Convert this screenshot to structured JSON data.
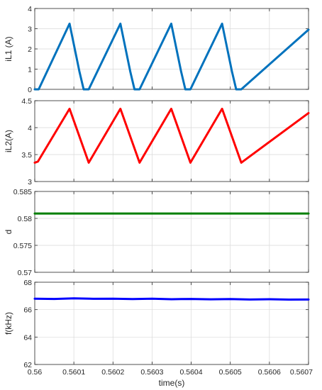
{
  "chart_data": {
    "type": "line",
    "xlabel": "time(s)",
    "xlim": [
      0.56,
      0.5607
    ],
    "xticks": [
      0.56,
      0.5601,
      0.5602,
      0.5603,
      0.5604,
      0.5605,
      0.5606,
      0.5607
    ],
    "x_tick_labels": [
      "0.56",
      "0.5601",
      "0.5602",
      "0.5603",
      "0.5604",
      "0.5605",
      "0.5606",
      "0.5607"
    ],
    "grid": true,
    "panels": [
      {
        "ylabel": "iL1 (A)",
        "ylim": [
          0,
          4
        ],
        "yticks": [
          0,
          1,
          2,
          3,
          4
        ],
        "y_tick_labels": [
          "0",
          "1",
          "2",
          "3",
          "4"
        ],
        "series": [
          {
            "color": "#0072bd",
            "x": [
              0.56,
              0.56001,
              0.560089,
              0.560114,
              0.560125,
              0.560138,
              0.560219,
              0.560244,
              0.560255,
              0.560268,
              0.560349,
              0.560374,
              0.560385,
              0.560398,
              0.560479,
              0.560504,
              0.560515,
              0.560528,
              0.5607
            ],
            "y": [
              0,
              0,
              3.25,
              0.9,
              0,
              0,
              3.25,
              0.9,
              0,
              0,
              3.25,
              0.9,
              0,
              0,
              3.25,
              0.9,
              0,
              0,
              2.95
            ]
          }
        ]
      },
      {
        "ylabel": "iL2(A)",
        "ylim": [
          3,
          4.5
        ],
        "yticks": [
          3,
          3.5,
          4,
          4.5
        ],
        "y_tick_labels": [
          "3",
          "3.5",
          "4",
          "4.5"
        ],
        "series": [
          {
            "color": "#ff0000",
            "x": [
              0.56,
              0.560008,
              0.560089,
              0.560138,
              0.560219,
              0.560268,
              0.560349,
              0.560398,
              0.560479,
              0.560528,
              0.5607
            ],
            "y": [
              3.35,
              3.37,
              4.35,
              3.35,
              4.35,
              3.35,
              4.35,
              3.35,
              4.35,
              3.35,
              4.27
            ]
          }
        ]
      },
      {
        "ylabel": "d",
        "ylim": [
          0.57,
          0.585
        ],
        "yticks": [
          0.57,
          0.575,
          0.58,
          0.585
        ],
        "y_tick_labels": [
          "0.57",
          "0.575",
          "0.58",
          "0.585"
        ],
        "series": [
          {
            "color": "#007f00",
            "x": [
              0.56,
              0.5607
            ],
            "y": [
              0.5809,
              0.5809
            ]
          }
        ]
      },
      {
        "ylabel": "f(kHz)",
        "ylim": [
          62,
          68
        ],
        "yticks": [
          62,
          64,
          66,
          68
        ],
        "y_tick_labels": [
          "62",
          "64",
          "66",
          "68"
        ],
        "series": [
          {
            "color": "#0000ff",
            "x": [
              0.56,
              0.56005,
              0.5601,
              0.56015,
              0.5602,
              0.56025,
              0.5603,
              0.56035,
              0.5604,
              0.56045,
              0.5605,
              0.56055,
              0.5606,
              0.56065,
              0.5607
            ],
            "y": [
              66.8,
              66.78,
              66.82,
              66.79,
              66.8,
              66.77,
              66.8,
              66.76,
              66.78,
              66.75,
              66.77,
              66.74,
              66.76,
              66.73,
              66.74
            ]
          }
        ]
      }
    ]
  }
}
